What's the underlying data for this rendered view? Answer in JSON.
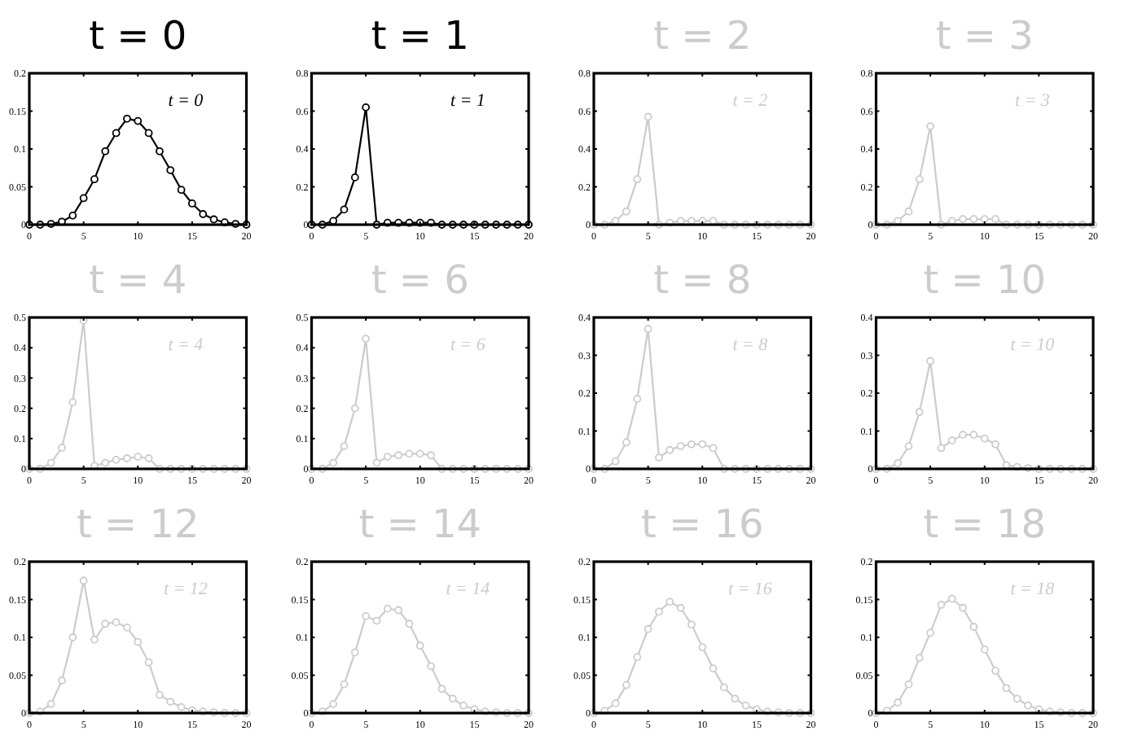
{
  "chart_data": [
    {
      "type": "line",
      "title": "t = 0",
      "annotations": [
        "t = 0"
      ],
      "x": [
        0,
        1,
        2,
        3,
        4,
        5,
        6,
        7,
        8,
        9,
        10,
        11,
        12,
        13,
        14,
        15,
        16,
        17,
        18,
        19,
        20
      ],
      "marker": "circle",
      "xlim": [
        0,
        20
      ],
      "xticks": [
        0,
        5,
        10,
        15,
        20
      ],
      "ylim": [
        0,
        0.2
      ],
      "yticks": [
        0,
        0.05,
        0.1,
        0.15,
        0.2
      ],
      "series": [
        {
          "color": "#000000",
          "values": [
            0,
            0,
            0.001,
            0.004,
            0.012,
            0.035,
            0.06,
            0.097,
            0.121,
            0.14,
            0.137,
            0.121,
            0.097,
            0.072,
            0.046,
            0.028,
            0.014,
            0.007,
            0.003,
            0.001,
            0
          ]
        }
      ]
    },
    {
      "type": "line",
      "title": "t = 1",
      "annotations": [
        "t = 1"
      ],
      "x": [
        0,
        1,
        2,
        3,
        4,
        5,
        6,
        7,
        8,
        9,
        10,
        11,
        12,
        13,
        14,
        15,
        16,
        17,
        18,
        19,
        20
      ],
      "marker": "circle",
      "xlim": [
        0,
        20
      ],
      "xticks": [
        0,
        5,
        10,
        15,
        20
      ],
      "ylim": [
        0,
        0.8
      ],
      "yticks": [
        0,
        0.2,
        0.4,
        0.6,
        0.8
      ],
      "series": [
        {
          "color": "#000000",
          "values": [
            0,
            0,
            0.02,
            0.08,
            0.25,
            0.62,
            0,
            0.01,
            0.01,
            0.01,
            0.01,
            0.01,
            0,
            0,
            0,
            0,
            0,
            0,
            0,
            0,
            0
          ]
        }
      ]
    },
    {
      "type": "line",
      "title": "t = 2",
      "annotations": [
        "t = 2"
      ],
      "x": [
        0,
        1,
        2,
        3,
        4,
        5,
        6,
        7,
        8,
        9,
        10,
        11,
        12,
        13,
        14,
        15,
        16,
        17,
        18,
        19,
        20
      ],
      "marker": "circle",
      "xlim": [
        0,
        20
      ],
      "xticks": [
        0,
        5,
        10,
        15,
        20
      ],
      "ylim": [
        0,
        0.8
      ],
      "yticks": [
        0,
        0.2,
        0.4,
        0.6,
        0.8
      ],
      "series": [
        {
          "color": "#cccccc",
          "values": [
            0,
            0,
            0.02,
            0.07,
            0.24,
            0.57,
            0,
            0.01,
            0.02,
            0.02,
            0.02,
            0.02,
            0,
            0,
            0,
            0,
            0,
            0,
            0,
            0,
            0
          ]
        }
      ]
    },
    {
      "type": "line",
      "title": "t = 3",
      "annotations": [
        "t = 3"
      ],
      "x": [
        0,
        1,
        2,
        3,
        4,
        5,
        6,
        7,
        8,
        9,
        10,
        11,
        12,
        13,
        14,
        15,
        16,
        17,
        18,
        19,
        20
      ],
      "marker": "circle",
      "xlim": [
        0,
        20
      ],
      "xticks": [
        0,
        5,
        10,
        15,
        20
      ],
      "ylim": [
        0,
        0.8
      ],
      "yticks": [
        0,
        0.2,
        0.4,
        0.6,
        0.8
      ],
      "series": [
        {
          "color": "#cccccc",
          "values": [
            0,
            0,
            0.02,
            0.07,
            0.24,
            0.52,
            0,
            0.02,
            0.03,
            0.03,
            0.03,
            0.03,
            0,
            0,
            0,
            0,
            0,
            0,
            0,
            0,
            0
          ]
        }
      ]
    },
    {
      "type": "line",
      "title": "t = 4",
      "annotations": [
        "t = 4"
      ],
      "x": [
        0,
        1,
        2,
        3,
        4,
        5,
        6,
        7,
        8,
        9,
        10,
        11,
        12,
        13,
        14,
        15,
        16,
        17,
        18,
        19,
        20
      ],
      "marker": "circle",
      "xlim": [
        0,
        20
      ],
      "xticks": [
        0,
        5,
        10,
        15,
        20
      ],
      "ylim": [
        0,
        0.5
      ],
      "yticks": [
        0,
        0.1,
        0.2,
        0.3,
        0.4,
        0.5
      ],
      "series": [
        {
          "color": "#cccccc",
          "values": [
            0,
            0,
            0.02,
            0.07,
            0.22,
            0.49,
            0.01,
            0.02,
            0.03,
            0.035,
            0.04,
            0.035,
            0,
            0,
            0,
            0,
            0,
            0,
            0,
            0,
            0
          ]
        }
      ]
    },
    {
      "type": "line",
      "title": "t = 6",
      "annotations": [
        "t = 6"
      ],
      "x": [
        0,
        1,
        2,
        3,
        4,
        5,
        6,
        7,
        8,
        9,
        10,
        11,
        12,
        13,
        14,
        15,
        16,
        17,
        18,
        19,
        20
      ],
      "marker": "circle",
      "xlim": [
        0,
        20
      ],
      "xticks": [
        0,
        5,
        10,
        15,
        20
      ],
      "ylim": [
        0,
        0.5
      ],
      "yticks": [
        0,
        0.1,
        0.2,
        0.3,
        0.4,
        0.5
      ],
      "series": [
        {
          "color": "#cccccc",
          "values": [
            0,
            0,
            0.02,
            0.075,
            0.2,
            0.43,
            0.02,
            0.04,
            0.045,
            0.05,
            0.05,
            0.045,
            0,
            0,
            0,
            0,
            0,
            0,
            0,
            0,
            0
          ]
        }
      ]
    },
    {
      "type": "line",
      "title": "t = 8",
      "annotations": [
        "t = 8"
      ],
      "x": [
        0,
        1,
        2,
        3,
        4,
        5,
        6,
        7,
        8,
        9,
        10,
        11,
        12,
        13,
        14,
        15,
        16,
        17,
        18,
        19,
        20
      ],
      "marker": "circle",
      "xlim": [
        0,
        20
      ],
      "xticks": [
        0,
        5,
        10,
        15,
        20
      ],
      "ylim": [
        0,
        0.4
      ],
      "yticks": [
        0,
        0.1,
        0.2,
        0.3,
        0.4
      ],
      "series": [
        {
          "color": "#cccccc",
          "values": [
            0,
            0,
            0.02,
            0.07,
            0.185,
            0.37,
            0.03,
            0.05,
            0.06,
            0.065,
            0.065,
            0.055,
            0,
            0,
            0,
            0,
            0,
            0,
            0,
            0,
            0
          ]
        }
      ]
    },
    {
      "type": "line",
      "title": "t = 10",
      "annotations": [
        "t = 10"
      ],
      "x": [
        0,
        1,
        2,
        3,
        4,
        5,
        6,
        7,
        8,
        9,
        10,
        11,
        12,
        13,
        14,
        15,
        16,
        17,
        18,
        19,
        20
      ],
      "marker": "circle",
      "xlim": [
        0,
        20
      ],
      "xticks": [
        0,
        5,
        10,
        15,
        20
      ],
      "ylim": [
        0,
        0.4
      ],
      "yticks": [
        0,
        0.1,
        0.2,
        0.3,
        0.4
      ],
      "series": [
        {
          "color": "#cccccc",
          "values": [
            0,
            0,
            0.015,
            0.06,
            0.15,
            0.285,
            0.055,
            0.075,
            0.09,
            0.09,
            0.08,
            0.065,
            0.01,
            0.005,
            0.002,
            0,
            0,
            0,
            0,
            0,
            0
          ]
        }
      ]
    },
    {
      "type": "line",
      "title": "t = 12",
      "annotations": [
        "t = 12"
      ],
      "x": [
        0,
        1,
        2,
        3,
        4,
        5,
        6,
        7,
        8,
        9,
        10,
        11,
        12,
        13,
        14,
        15,
        16,
        17,
        18,
        19,
        20
      ],
      "marker": "circle",
      "xlim": [
        0,
        20
      ],
      "xticks": [
        0,
        5,
        10,
        15,
        20
      ],
      "ylim": [
        0,
        0.2
      ],
      "yticks": [
        0,
        0.05,
        0.1,
        0.15,
        0.2
      ],
      "series": [
        {
          "color": "#cccccc",
          "values": [
            0,
            0.002,
            0.012,
            0.043,
            0.1,
            0.175,
            0.097,
            0.118,
            0.12,
            0.113,
            0.094,
            0.067,
            0.024,
            0.015,
            0.008,
            0.004,
            0.002,
            0.001,
            0,
            0,
            0
          ]
        }
      ]
    },
    {
      "type": "line",
      "title": "t = 14",
      "annotations": [
        "t = 14"
      ],
      "x": [
        0,
        1,
        2,
        3,
        4,
        5,
        6,
        7,
        8,
        9,
        10,
        11,
        12,
        13,
        14,
        15,
        16,
        17,
        18,
        19,
        20
      ],
      "marker": "circle",
      "xlim": [
        0,
        20
      ],
      "xticks": [
        0,
        5,
        10,
        15,
        20
      ],
      "ylim": [
        0,
        0.2
      ],
      "yticks": [
        0,
        0.05,
        0.1,
        0.15,
        0.2
      ],
      "series": [
        {
          "color": "#cccccc",
          "values": [
            0,
            0.002,
            0.012,
            0.038,
            0.08,
            0.128,
            0.122,
            0.138,
            0.136,
            0.118,
            0.089,
            0.062,
            0.032,
            0.019,
            0.01,
            0.005,
            0.002,
            0.001,
            0,
            0,
            0
          ]
        }
      ]
    },
    {
      "type": "line",
      "title": "t = 16",
      "annotations": [
        "t = 16"
      ],
      "x": [
        0,
        1,
        2,
        3,
        4,
        5,
        6,
        7,
        8,
        9,
        10,
        11,
        12,
        13,
        14,
        15,
        16,
        17,
        18,
        19,
        20
      ],
      "marker": "circle",
      "xlim": [
        0,
        20
      ],
      "xticks": [
        0,
        5,
        10,
        15,
        20
      ],
      "ylim": [
        0,
        0.2
      ],
      "yticks": [
        0,
        0.05,
        0.1,
        0.15,
        0.2
      ],
      "series": [
        {
          "color": "#cccccc",
          "values": [
            0,
            0.003,
            0.013,
            0.037,
            0.074,
            0.111,
            0.134,
            0.147,
            0.139,
            0.117,
            0.087,
            0.059,
            0.034,
            0.019,
            0.01,
            0.005,
            0.002,
            0.001,
            0,
            0,
            0
          ]
        }
      ]
    },
    {
      "type": "line",
      "title": "t = 18",
      "annotations": [
        "t = 18"
      ],
      "x": [
        0,
        1,
        2,
        3,
        4,
        5,
        6,
        7,
        8,
        9,
        10,
        11,
        12,
        13,
        14,
        15,
        16,
        17,
        18,
        19,
        20
      ],
      "marker": "circle",
      "xlim": [
        0,
        20
      ],
      "xticks": [
        0,
        5,
        10,
        15,
        20
      ],
      "ylim": [
        0,
        0.2
      ],
      "yticks": [
        0,
        0.05,
        0.1,
        0.15,
        0.2
      ],
      "series": [
        {
          "color": "#cccccc",
          "values": [
            0,
            0.003,
            0.014,
            0.038,
            0.073,
            0.106,
            0.143,
            0.151,
            0.139,
            0.114,
            0.084,
            0.056,
            0.033,
            0.019,
            0.01,
            0.005,
            0.002,
            0.001,
            0,
            0,
            0
          ]
        }
      ]
    }
  ]
}
